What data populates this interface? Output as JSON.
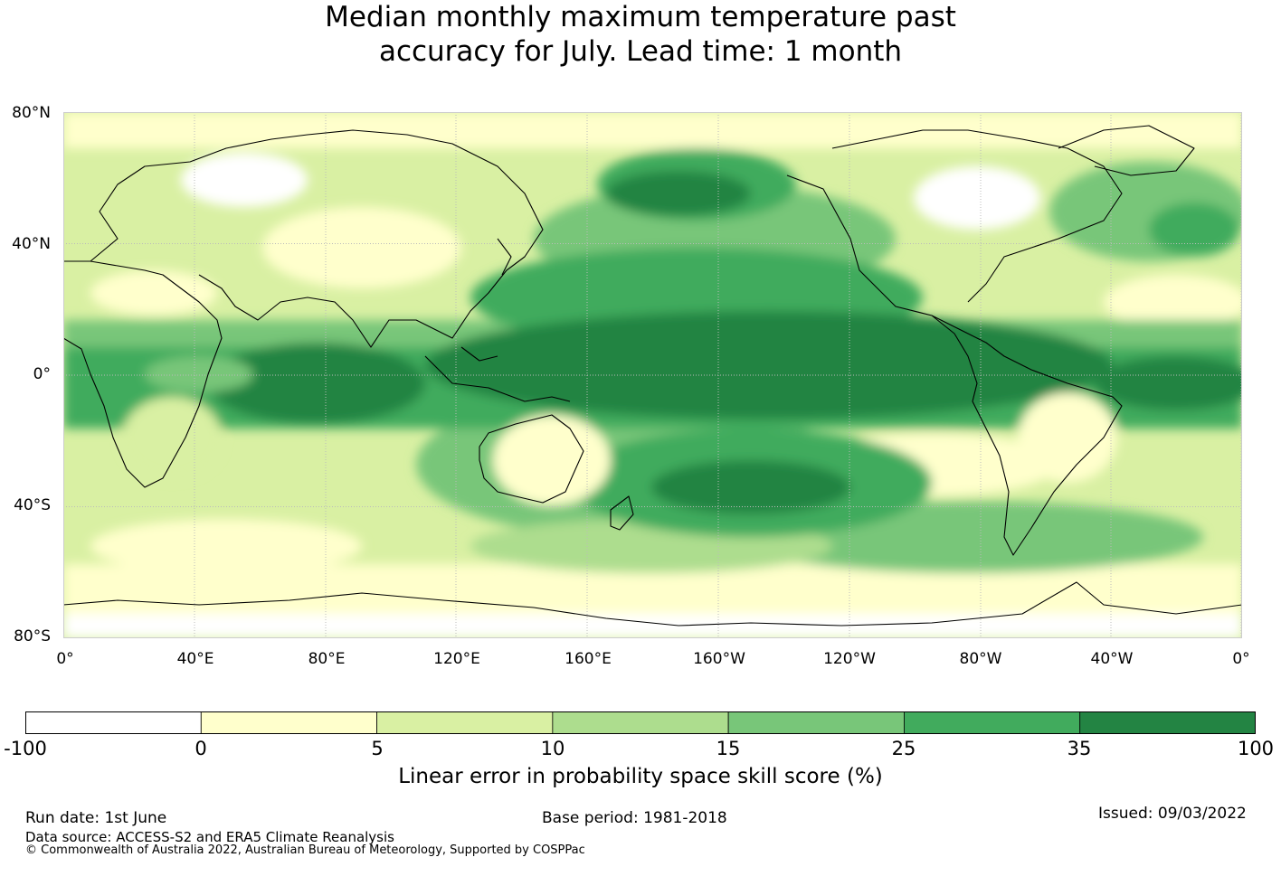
{
  "title": {
    "line1": "Median monthly maximum temperature past",
    "line2": "accuracy for July. Lead time: 1 month"
  },
  "map": {
    "lat_labels": [
      "80°N",
      "40°N",
      "0°",
      "40°S",
      "80°S"
    ],
    "lon_labels": [
      "0°",
      "40°E",
      "80°E",
      "120°E",
      "160°E",
      "160°W",
      "120°W",
      "80°W",
      "40°W",
      "0°"
    ]
  },
  "colorbar": {
    "label": "Linear error in probability space skill score (%)",
    "ticks": [
      "-100",
      "0",
      "5",
      "10",
      "15",
      "25",
      "35",
      "100"
    ],
    "colors": [
      "#ffffff",
      "#ffffcc",
      "#d9f0a3",
      "#addd8e",
      "#78c679",
      "#41ab5d",
      "#238443"
    ]
  },
  "footer": {
    "run_date": "Run date: 1st June",
    "base_period": "Base period: 1981-2018",
    "issued": "Issued: 09/03/2022",
    "data_source": "Data source: ACCESS-S2 and ERA5 Climate Reanalysis",
    "copyright": "© Commonwealth of Australia 2022, Australian Bureau of Meteorology, Supported by COSPPac"
  }
}
